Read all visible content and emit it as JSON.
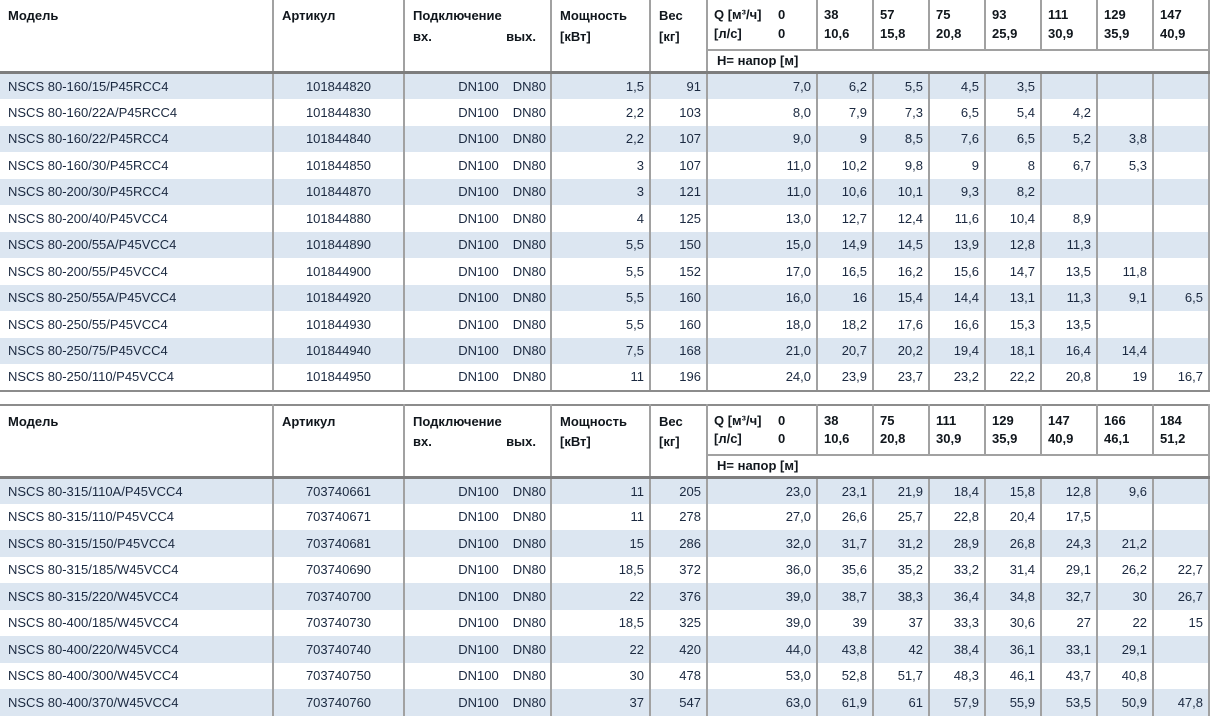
{
  "colors": {
    "row_stripe": "#dce6f1",
    "grid_line": "#a1a1a1",
    "header_separator": "#7d7d7d",
    "body_text": "#1b2940",
    "header_text": "#10161c"
  },
  "header_labels": {
    "model": "Модель",
    "article": "Артикул",
    "connection": "Подключение",
    "conn_in": "вх.",
    "conn_out": "вых.",
    "power_line1": "Мощность",
    "power_line2": "[кВт]",
    "weight_line1": "Вес",
    "weight_line2": "[кг]",
    "q_label": "Q [м³/ч]",
    "q_zero": "0",
    "ls_label": "[л/с]",
    "ls_zero": "0",
    "head_band": "H= напор [м]"
  },
  "tables": [
    {
      "flow_columns": [
        {
          "m3h": "38",
          "ls": "10,6"
        },
        {
          "m3h": "57",
          "ls": "15,8"
        },
        {
          "m3h": "75",
          "ls": "20,8"
        },
        {
          "m3h": "93",
          "ls": "25,9"
        },
        {
          "m3h": "111",
          "ls": "30,9"
        },
        {
          "m3h": "129",
          "ls": "35,9"
        },
        {
          "m3h": "147",
          "ls": "40,9"
        }
      ],
      "rows": [
        {
          "model": "NSCS 80-160/15/P45RCC4",
          "article": "101844820",
          "conn_in": "DN100",
          "conn_out": "DN80",
          "power": "1,5",
          "weight": "91",
          "h": [
            "7,0",
            "6,2",
            "5,5",
            "4,5",
            "3,5",
            "",
            "",
            ""
          ]
        },
        {
          "model": "NSCS 80-160/22A/P45RCC4",
          "article": "101844830",
          "conn_in": "DN100",
          "conn_out": "DN80",
          "power": "2,2",
          "weight": "103",
          "h": [
            "8,0",
            "7,9",
            "7,3",
            "6,5",
            "5,4",
            "4,2",
            "",
            ""
          ]
        },
        {
          "model": "NSCS 80-160/22/P45RCC4",
          "article": "101844840",
          "conn_in": "DN100",
          "conn_out": "DN80",
          "power": "2,2",
          "weight": "107",
          "h": [
            "9,0",
            "9",
            "8,5",
            "7,6",
            "6,5",
            "5,2",
            "3,8",
            ""
          ]
        },
        {
          "model": "NSCS 80-160/30/P45RCC4",
          "article": "101844850",
          "conn_in": "DN100",
          "conn_out": "DN80",
          "power": "3",
          "weight": "107",
          "h": [
            "11,0",
            "10,2",
            "9,8",
            "9",
            "8",
            "6,7",
            "5,3",
            ""
          ]
        },
        {
          "model": "NSCS 80-200/30/P45RCC4",
          "article": "101844870",
          "conn_in": "DN100",
          "conn_out": "DN80",
          "power": "3",
          "weight": "121",
          "h": [
            "11,0",
            "10,6",
            "10,1",
            "9,3",
            "8,2",
            "",
            "",
            ""
          ]
        },
        {
          "model": "NSCS 80-200/40/P45VCC4",
          "article": "101844880",
          "conn_in": "DN100",
          "conn_out": "DN80",
          "power": "4",
          "weight": "125",
          "h": [
            "13,0",
            "12,7",
            "12,4",
            "11,6",
            "10,4",
            "8,9",
            "",
            ""
          ]
        },
        {
          "model": "NSCS 80-200/55A/P45VCC4",
          "article": "101844890",
          "conn_in": "DN100",
          "conn_out": "DN80",
          "power": "5,5",
          "weight": "150",
          "h": [
            "15,0",
            "14,9",
            "14,5",
            "13,9",
            "12,8",
            "11,3",
            "",
            ""
          ]
        },
        {
          "model": "NSCS 80-200/55/P45VCC4",
          "article": "101844900",
          "conn_in": "DN100",
          "conn_out": "DN80",
          "power": "5,5",
          "weight": "152",
          "h": [
            "17,0",
            "16,5",
            "16,2",
            "15,6",
            "14,7",
            "13,5",
            "11,8",
            ""
          ]
        },
        {
          "model": "NSCS 80-250/55A/P45VCC4",
          "article": "101844920",
          "conn_in": "DN100",
          "conn_out": "DN80",
          "power": "5,5",
          "weight": "160",
          "h": [
            "16,0",
            "16",
            "15,4",
            "14,4",
            "13,1",
            "11,3",
            "9,1",
            "6,5"
          ]
        },
        {
          "model": "NSCS 80-250/55/P45VCC4",
          "article": "101844930",
          "conn_in": "DN100",
          "conn_out": "DN80",
          "power": "5,5",
          "weight": "160",
          "h": [
            "18,0",
            "18,2",
            "17,6",
            "16,6",
            "15,3",
            "13,5",
            "",
            ""
          ]
        },
        {
          "model": "NSCS 80-250/75/P45VCC4",
          "article": "101844940",
          "conn_in": "DN100",
          "conn_out": "DN80",
          "power": "7,5",
          "weight": "168",
          "h": [
            "21,0",
            "20,7",
            "20,2",
            "19,4",
            "18,1",
            "16,4",
            "14,4",
            ""
          ]
        },
        {
          "model": "NSCS 80-250/110/P45VCC4",
          "article": "101844950",
          "conn_in": "DN100",
          "conn_out": "DN80",
          "power": "11",
          "weight": "196",
          "h": [
            "24,0",
            "23,9",
            "23,7",
            "23,2",
            "22,2",
            "20,8",
            "19",
            "16,7"
          ]
        }
      ]
    },
    {
      "flow_columns": [
        {
          "m3h": "38",
          "ls": "10,6"
        },
        {
          "m3h": "75",
          "ls": "20,8"
        },
        {
          "m3h": "111",
          "ls": "30,9"
        },
        {
          "m3h": "129",
          "ls": "35,9"
        },
        {
          "m3h": "147",
          "ls": "40,9"
        },
        {
          "m3h": "166",
          "ls": "46,1"
        },
        {
          "m3h": "184",
          "ls": "51,2"
        }
      ],
      "rows": [
        {
          "model": "NSCS 80-315/110A/P45VCC4",
          "article": "703740661",
          "conn_in": "DN100",
          "conn_out": "DN80",
          "power": "11",
          "weight": "205",
          "h": [
            "23,0",
            "23,1",
            "21,9",
            "18,4",
            "15,8",
            "12,8",
            "9,6",
            ""
          ]
        },
        {
          "model": "NSCS 80-315/110/P45VCC4",
          "article": "703740671",
          "conn_in": "DN100",
          "conn_out": "DN80",
          "power": "11",
          "weight": "278",
          "h": [
            "27,0",
            "26,6",
            "25,7",
            "22,8",
            "20,4",
            "17,5",
            "",
            ""
          ]
        },
        {
          "model": "NSCS 80-315/150/P45VCC4",
          "article": "703740681",
          "conn_in": "DN100",
          "conn_out": "DN80",
          "power": "15",
          "weight": "286",
          "h": [
            "32,0",
            "31,7",
            "31,2",
            "28,9",
            "26,8",
            "24,3",
            "21,2",
            ""
          ]
        },
        {
          "model": "NSCS 80-315/185/W45VCC4",
          "article": "703740690",
          "conn_in": "DN100",
          "conn_out": "DN80",
          "power": "18,5",
          "weight": "372",
          "h": [
            "36,0",
            "35,6",
            "35,2",
            "33,2",
            "31,4",
            "29,1",
            "26,2",
            "22,7"
          ]
        },
        {
          "model": "NSCS 80-315/220/W45VCC4",
          "article": "703740700",
          "conn_in": "DN100",
          "conn_out": "DN80",
          "power": "22",
          "weight": "376",
          "h": [
            "39,0",
            "38,7",
            "38,3",
            "36,4",
            "34,8",
            "32,7",
            "30",
            "26,7"
          ]
        },
        {
          "model": "NSCS 80-400/185/W45VCC4",
          "article": "703740730",
          "conn_in": "DN100",
          "conn_out": "DN80",
          "power": "18,5",
          "weight": "325",
          "h": [
            "39,0",
            "39",
            "37",
            "33,3",
            "30,6",
            "27",
            "22",
            "15"
          ]
        },
        {
          "model": "NSCS 80-400/220/W45VCC4",
          "article": "703740740",
          "conn_in": "DN100",
          "conn_out": "DN80",
          "power": "22",
          "weight": "420",
          "h": [
            "44,0",
            "43,8",
            "42",
            "38,4",
            "36,1",
            "33,1",
            "29,1",
            ""
          ]
        },
        {
          "model": "NSCS 80-400/300/W45VCC4",
          "article": "703740750",
          "conn_in": "DN100",
          "conn_out": "DN80",
          "power": "30",
          "weight": "478",
          "h": [
            "53,0",
            "52,8",
            "51,7",
            "48,3",
            "46,1",
            "43,7",
            "40,8",
            ""
          ]
        },
        {
          "model": "NSCS 80-400/370/W45VCC4",
          "article": "703740760",
          "conn_in": "DN100",
          "conn_out": "DN80",
          "power": "37",
          "weight": "547",
          "h": [
            "63,0",
            "61,9",
            "61",
            "57,9",
            "55,9",
            "53,5",
            "50,9",
            "47,8"
          ]
        }
      ]
    }
  ]
}
